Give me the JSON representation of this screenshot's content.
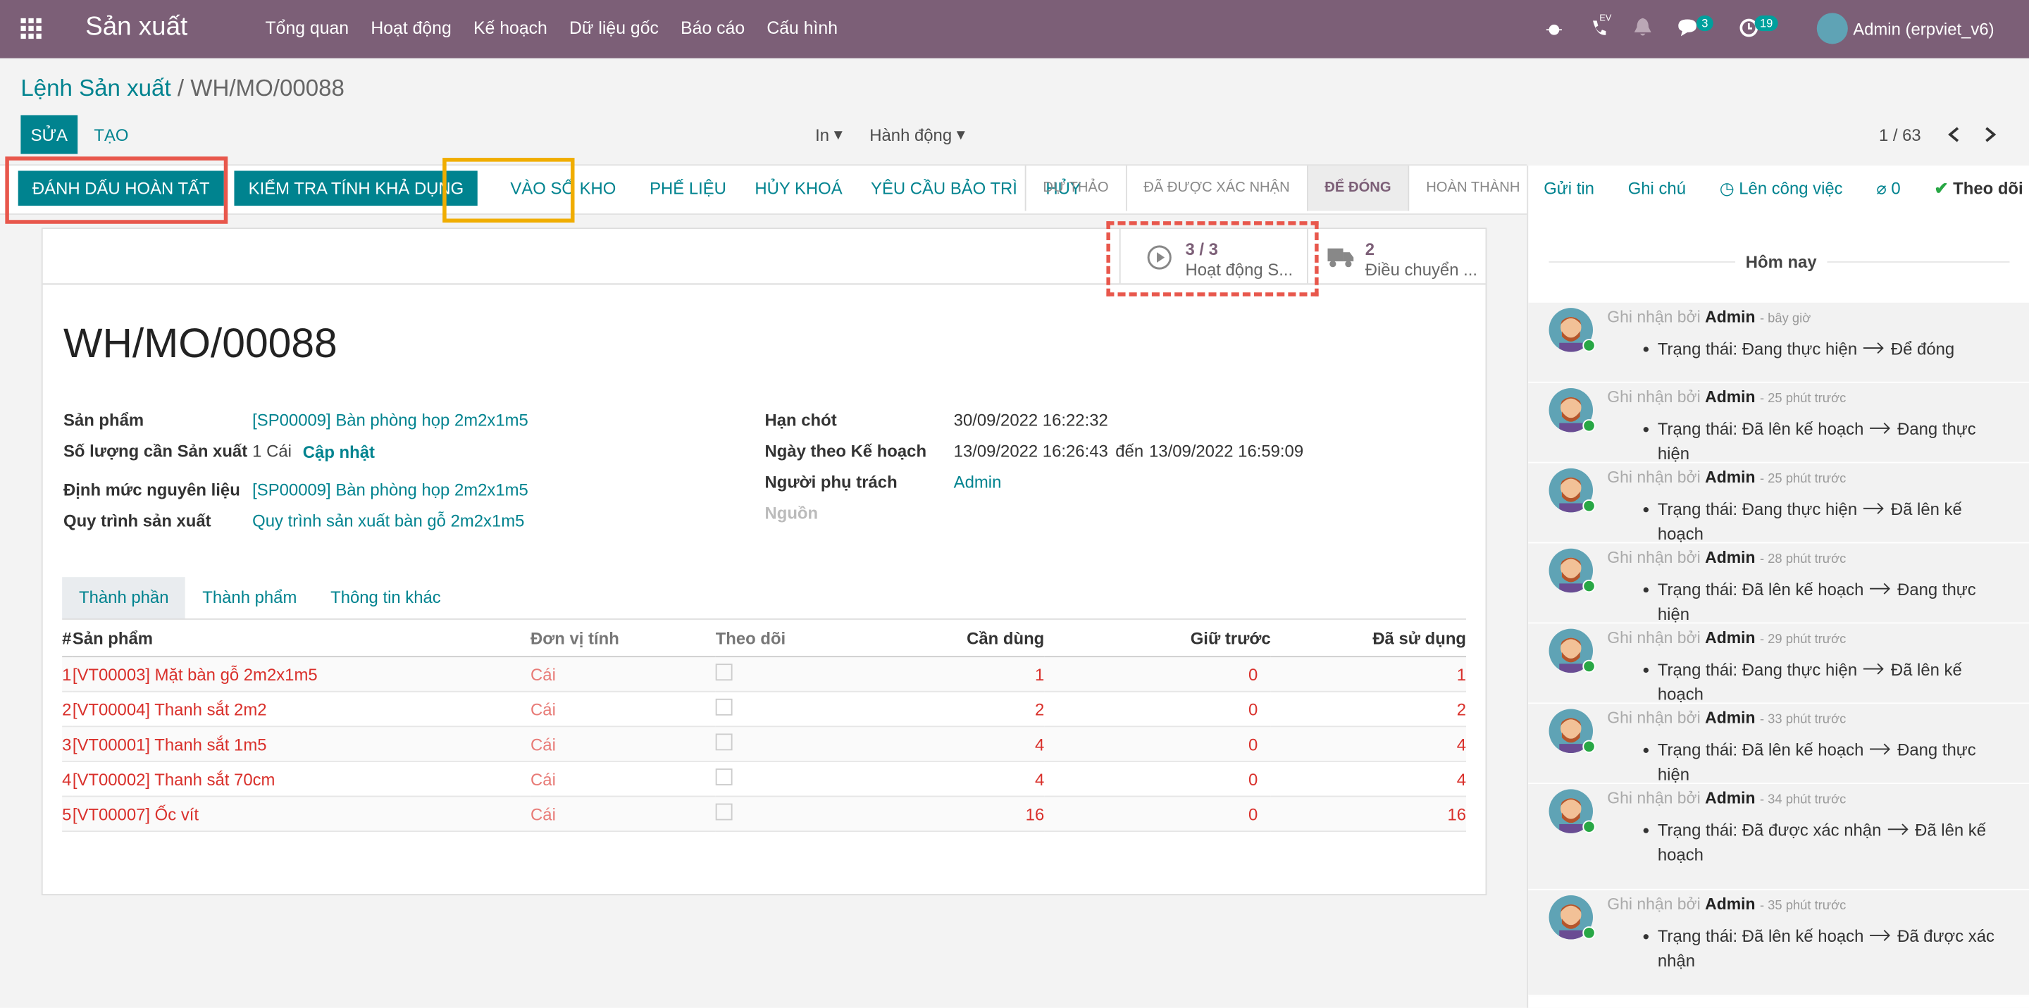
{
  "navbar": {
    "app": "Sản xuất",
    "menu": [
      "Tổng quan",
      "Hoạt động",
      "Kế hoạch",
      "Dữ liệu gốc",
      "Báo cáo",
      "Cấu hình"
    ],
    "ev": "EV",
    "message_count": "3",
    "activity_count": "19",
    "user": "Admin (erpviet_v6)"
  },
  "breadcrumb": {
    "parent": "Lệnh Sản xuất",
    "separator": "/",
    "current": "WH/MO/00088"
  },
  "control": {
    "edit": "SỬA",
    "create": "TẠO",
    "print": "In",
    "action": "Hành động",
    "pager": "1 / 63"
  },
  "actions": [
    "ĐÁNH DẤU HOÀN TẤT",
    "KIỂM TRA TÍNH KHẢ DỤNG",
    "VÀO SỔ KHO",
    "PHẾ LIỆU",
    "HỦY KHOÁ",
    "YÊU CẦU BẢO TRÌ",
    "HỦY"
  ],
  "stages": [
    "DỰ THẢO",
    "ĐÃ ĐƯỢC XÁC NHẬN",
    "ĐỂ ĐÓNG",
    "HOÀN THÀNH"
  ],
  "chatter_buttons": {
    "send": "Gửi tin",
    "note": "Ghi chú",
    "activity": "Lên công việc",
    "attachments": "0",
    "follow": "Theo dõi"
  },
  "smart_buttons": [
    {
      "count": "3 / 3",
      "label": "Hoạt động S..."
    },
    {
      "count": "2",
      "label": "Điều chuyển ..."
    }
  ],
  "form": {
    "title": "WH/MO/00088",
    "left": [
      {
        "label": "Sản phẩm",
        "value": "[SP00009] Bàn phòng họp 2m2x1m5"
      },
      {
        "label": "Số lượng cần Sản xuất",
        "value": "1 Cái",
        "link": "Cập nhật"
      },
      {
        "label": "Định mức nguyên liệu",
        "value": "[SP00009] Bàn phòng họp 2m2x1m5"
      },
      {
        "label": "Quy trình sản xuất",
        "value": "Quy trình sản xuất bàn gỗ 2m2x1m5"
      }
    ],
    "right": [
      {
        "label": "Hạn chót",
        "value": "30/09/2022 16:22:32"
      },
      {
        "label": "Ngày theo Kế hoạch",
        "value": "13/09/2022 16:26:43",
        "between": "đến",
        "end": "13/09/2022 16:59:09"
      },
      {
        "label": "Người phụ trách",
        "value": "Admin"
      },
      {
        "label": "Nguồn"
      }
    ]
  },
  "tabs": [
    "Thành phần",
    "Thành phẩm",
    "Thông tin khác"
  ],
  "table": {
    "headers": [
      "#",
      "Sản phẩm",
      "Đơn vị tính",
      "Theo dõi",
      "Cần dùng",
      "Giữ trước",
      "Đã sử dụng"
    ],
    "rows": [
      [
        "1",
        "[VT00003] Mặt bàn gỗ 2m2x1m5",
        "Cái",
        "1",
        "0",
        "1"
      ],
      [
        "2",
        "[VT00004] Thanh sắt 2m2",
        "Cái",
        "2",
        "0",
        "2"
      ],
      [
        "3",
        "[VT00001] Thanh sắt 1m5",
        "Cái",
        "4",
        "0",
        "4"
      ],
      [
        "4",
        "[VT00002] Thanh sắt 70cm",
        "Cái",
        "4",
        "0",
        "4"
      ],
      [
        "5",
        "[VT00007] Ốc vít",
        "Cái",
        "16",
        "0",
        "16"
      ]
    ]
  },
  "chatter": {
    "day": "Hôm nay",
    "logged_by": "Ghi nhận bởi",
    "field": "Trạng thái:",
    "messages": [
      {
        "author": "Admin",
        "time": "- bây giờ",
        "from": "Đang thực hiện",
        "to": "Để đóng"
      },
      {
        "author": "Admin",
        "time": "- 25 phút trước",
        "from": "Đã lên kế hoạch",
        "to": "Đang thực hiện"
      },
      {
        "author": "Admin",
        "time": "- 25 phút trước",
        "from": "Đang thực hiện",
        "to": "Đã lên kế hoạch"
      },
      {
        "author": "Admin",
        "time": "- 28 phút trước",
        "from": "Đã lên kế hoạch",
        "to": "Đang thực hiện"
      },
      {
        "author": "Admin",
        "time": "- 29 phút trước",
        "from": "Đang thực hiện",
        "to": "Đã lên kế hoạch"
      },
      {
        "author": "Admin",
        "time": "- 33 phút trước",
        "from": "Đã lên kế hoạch",
        "to": "Đang thực hiện"
      },
      {
        "author": "Admin",
        "time": "- 34 phút trước",
        "from": "Đã được xác nhận",
        "to": "Đã lên kế hoạch"
      },
      {
        "author": "Admin",
        "time": "- 35 phút trước",
        "from": "Đã lên kế hoạch",
        "to": "Đã được xác nhận"
      }
    ]
  }
}
